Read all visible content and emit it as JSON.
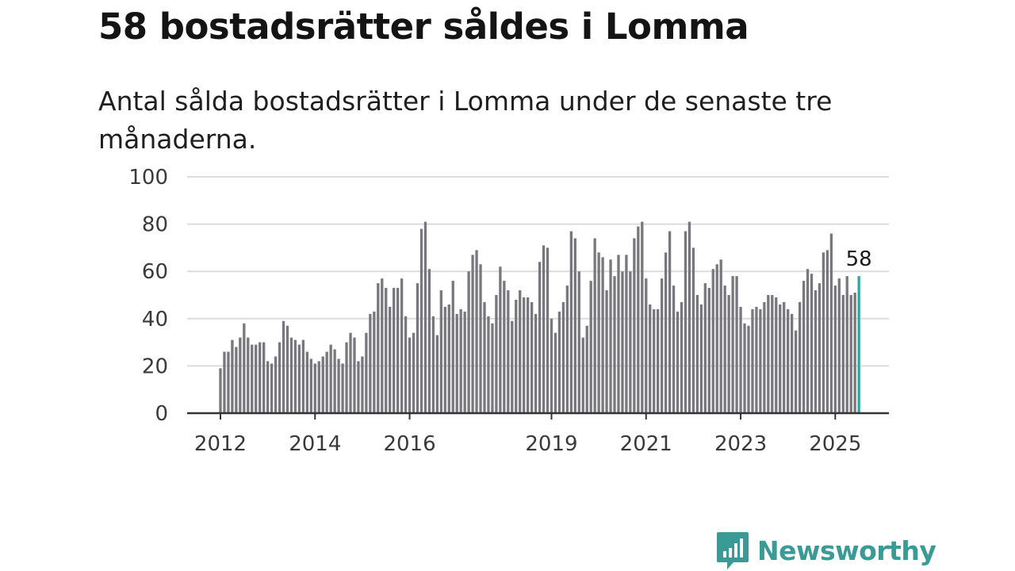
{
  "title": "58 bostadsrätter såldes i Lomma",
  "subtitle": "Antal sålda bostadsrätter i Lomma under de senaste tre månaderna.",
  "brand": {
    "name": "Newsworthy",
    "color": "#3a9a96",
    "icon": "newsworthy-chat-bar-icon"
  },
  "colors": {
    "bar": "#77777d",
    "highlight": "#2aa9a3",
    "grid": "#dcdcdc",
    "axis": "#333333"
  },
  "chart_data": {
    "type": "bar",
    "title": "58 bostadsrätter såldes i Lomma",
    "subtitle": "Antal sålda bostadsrätter i Lomma under de senaste tre månaderna.",
    "xlabel": "",
    "ylabel": "",
    "ylim": [
      0,
      100
    ],
    "yticks": [
      0,
      20,
      40,
      60,
      80,
      100
    ],
    "grid": true,
    "x_start": "2012-01",
    "x_interval": "month",
    "xticks": [
      {
        "label": "2012",
        "index": 0
      },
      {
        "label": "2014",
        "index": 24
      },
      {
        "label": "2016",
        "index": 48
      },
      {
        "label": "2019",
        "index": 84
      },
      {
        "label": "2021",
        "index": 108
      },
      {
        "label": "2023",
        "index": 132
      },
      {
        "label": "2025",
        "index": 156
      }
    ],
    "highlight_label": "58",
    "values": [
      19,
      26,
      26,
      31,
      28,
      32,
      38,
      32,
      29,
      29,
      30,
      30,
      22,
      21,
      24,
      30,
      39,
      37,
      32,
      31,
      29,
      31,
      26,
      23,
      21,
      22,
      24,
      26,
      29,
      27,
      23,
      21,
      30,
      34,
      32,
      22,
      24,
      34,
      42,
      43,
      55,
      57,
      53,
      45,
      53,
      53,
      57,
      41,
      32,
      34,
      55,
      78,
      81,
      61,
      41,
      33,
      52,
      45,
      46,
      56,
      42,
      44,
      43,
      60,
      67,
      69,
      63,
      47,
      41,
      38,
      50,
      62,
      56,
      52,
      39,
      48,
      52,
      49,
      49,
      47,
      42,
      64,
      71,
      70,
      40,
      34,
      43,
      47,
      54,
      77,
      74,
      60,
      32,
      37,
      56,
      74,
      68,
      66,
      52,
      65,
      58,
      67,
      60,
      67,
      60,
      74,
      79,
      81,
      57,
      46,
      44,
      44,
      57,
      68,
      77,
      54,
      43,
      47,
      77,
      81,
      70,
      50,
      46,
      55,
      53,
      61,
      63,
      65,
      54,
      50,
      58,
      58,
      45,
      38,
      37,
      44,
      45,
      44,
      47,
      50,
      50,
      49,
      46,
      47,
      44,
      42,
      35,
      47,
      56,
      61,
      59,
      52,
      55,
      68,
      69,
      76,
      54,
      57,
      50,
      58,
      50,
      51,
      58
    ]
  }
}
